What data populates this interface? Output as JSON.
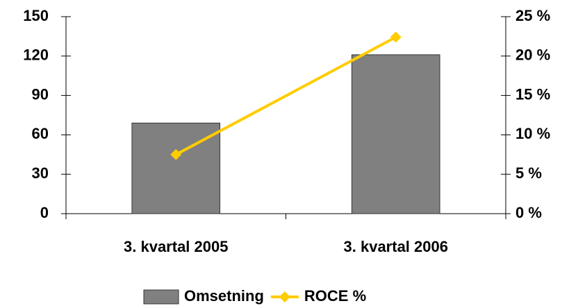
{
  "chart_data": {
    "type": "bar",
    "categories": [
      "3. kvartal 2005",
      "3. kvartal 2006"
    ],
    "series": [
      {
        "name": "Omsetning",
        "type": "bar",
        "color": "#808080",
        "values": [
          69,
          121
        ]
      },
      {
        "name": "ROCE %",
        "type": "line",
        "axis": "y2",
        "color": "#ffcc00",
        "values": [
          7.5,
          22.4
        ]
      }
    ],
    "ylim": [
      0,
      150
    ],
    "yticks": [
      0,
      30,
      60,
      90,
      120,
      150
    ],
    "y2lim": [
      0,
      25
    ],
    "y2ticks": [
      {
        "value": 0,
        "label": "0 %"
      },
      {
        "value": 5,
        "label": "5 %"
      },
      {
        "value": 10,
        "label": "10 %"
      },
      {
        "value": 15,
        "label": "15 %"
      },
      {
        "value": 20,
        "label": "20 %"
      },
      {
        "value": 25,
        "label": "25 %"
      }
    ],
    "legend": "bottom"
  }
}
